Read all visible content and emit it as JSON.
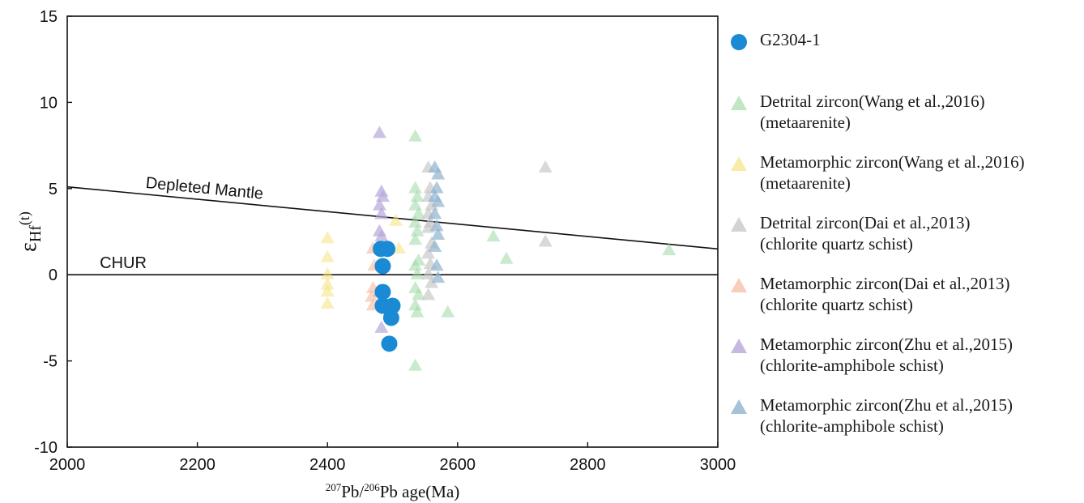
{
  "chart_data": {
    "type": "scatter",
    "title": "",
    "xlabel": "207Pb/206Pb age(Ma)",
    "xlabel_parts": {
      "sup1": "207",
      "base1": "Pb/",
      "sup2": "206",
      "base2": "Pb age(Ma)"
    },
    "ylabel": "εHf(t)",
    "ylabel_parts": {
      "main": "ε",
      "sub": "Hf",
      "tail": "(t)"
    },
    "xlim": [
      2000,
      3000
    ],
    "ylim": [
      -10,
      15
    ],
    "x_ticks": [
      "2000",
      "2200",
      "2400",
      "2600",
      "2800",
      "3000"
    ],
    "y_ticks": [
      "15",
      "10",
      "5",
      "0",
      "-5",
      "-10"
    ],
    "x_tick_values": [
      2000,
      2200,
      2400,
      2600,
      2800,
      3000
    ],
    "y_tick_values": [
      15,
      10,
      5,
      0,
      -5,
      -10
    ],
    "grid": false,
    "legend_position": "right",
    "reference_lines": [
      {
        "name": "Depleted Mantle",
        "label": "Depleted Mantle",
        "x": [
          2000,
          3000
        ],
        "y": [
          5.1,
          1.5
        ]
      },
      {
        "name": "CHUR",
        "label": "CHUR",
        "x": [
          2000,
          3000
        ],
        "y": [
          0,
          0
        ]
      }
    ],
    "series": [
      {
        "name": "G2304-1",
        "sub": "",
        "marker": "circle",
        "color": "#1a8ad4",
        "opacity": 1.0,
        "points": [
          [
            2482,
            1.5
          ],
          [
            2492,
            1.5
          ],
          [
            2485,
            0.5
          ],
          [
            2485,
            -1.0
          ],
          [
            2485,
            -1.8
          ],
          [
            2500,
            -1.8
          ],
          [
            2498,
            -2.5
          ],
          [
            2495,
            -4.0
          ]
        ]
      },
      {
        "name": "Detrital zircon(Wang et al.,2016)",
        "sub": "(metaarenite)",
        "marker": "triangle",
        "color": "#9ed9a5",
        "opacity": 0.55,
        "points": [
          [
            2535,
            8.0
          ],
          [
            2535,
            5.0
          ],
          [
            2538,
            4.5
          ],
          [
            2535,
            4.0
          ],
          [
            2540,
            3.5
          ],
          [
            2535,
            3.0
          ],
          [
            2538,
            2.5
          ],
          [
            2535,
            2.0
          ],
          [
            2540,
            0.8
          ],
          [
            2535,
            0.5
          ],
          [
            2538,
            0.0
          ],
          [
            2535,
            -0.8
          ],
          [
            2540,
            -1.2
          ],
          [
            2535,
            -1.8
          ],
          [
            2538,
            -2.2
          ],
          [
            2585,
            -2.2
          ],
          [
            2535,
            -5.3
          ],
          [
            2655,
            2.2
          ],
          [
            2675,
            0.9
          ],
          [
            2925,
            1.4
          ]
        ]
      },
      {
        "name": "Metamorphic zircon(Wang et al.,2016)",
        "sub": "(metaarenite)",
        "marker": "triangle",
        "color": "#f6e27a",
        "opacity": 0.55,
        "points": [
          [
            2400,
            2.1
          ],
          [
            2400,
            1.0
          ],
          [
            2400,
            0.0
          ],
          [
            2400,
            -0.6
          ],
          [
            2400,
            -1.0
          ],
          [
            2400,
            -1.7
          ],
          [
            2505,
            3.1
          ],
          [
            2510,
            1.5
          ]
        ]
      },
      {
        "name": "Detrital zircon(Dai et al.,2013)",
        "sub": "(chlorite quartz schist)",
        "marker": "triangle",
        "color": "#c4c4c4",
        "opacity": 0.65,
        "points": [
          [
            2555,
            6.2
          ],
          [
            2558,
            5.0
          ],
          [
            2555,
            4.5
          ],
          [
            2560,
            4.0
          ],
          [
            2555,
            3.5
          ],
          [
            2558,
            3.0
          ],
          [
            2555,
            2.7
          ],
          [
            2560,
            1.8
          ],
          [
            2555,
            1.2
          ],
          [
            2558,
            0.6
          ],
          [
            2555,
            0.0
          ],
          [
            2560,
            -0.5
          ],
          [
            2555,
            -1.2
          ],
          [
            2735,
            6.2
          ],
          [
            2735,
            1.9
          ]
        ]
      },
      {
        "name": "Metamorphic zircon(Dai et al.,2013)",
        "sub": "(chlorite quartz schist)",
        "marker": "triangle",
        "color": "#f5b297",
        "opacity": 0.55,
        "points": [
          [
            2470,
            1.5
          ],
          [
            2472,
            0.5
          ],
          [
            2470,
            -0.8
          ],
          [
            2468,
            -1.3
          ],
          [
            2470,
            -1.8
          ]
        ]
      },
      {
        "name": "Metamorphic zircon(Zhu et al.,2015)",
        "sub": "(chlorite-amphibole schist)",
        "marker": "triangle",
        "color": "#b7a8d9",
        "opacity": 0.7,
        "points": [
          [
            2480,
            8.2
          ],
          [
            2483,
            4.8
          ],
          [
            2485,
            4.5
          ],
          [
            2480,
            4.0
          ],
          [
            2483,
            3.5
          ],
          [
            2480,
            2.5
          ],
          [
            2483,
            2.2
          ],
          [
            2480,
            -1.0
          ],
          [
            2483,
            -3.1
          ]
        ]
      },
      {
        "name": "Metamorphic zircon(Zhu et al.,2015)",
        "sub": "(chlorite-amphibole schist)",
        "marker": "triangle",
        "color": "#8eb3cf",
        "opacity": 0.7,
        "points": [
          [
            2565,
            6.2
          ],
          [
            2570,
            5.8
          ],
          [
            2568,
            5.0
          ],
          [
            2565,
            4.5
          ],
          [
            2570,
            4.2
          ],
          [
            2565,
            3.5
          ],
          [
            2568,
            2.8
          ],
          [
            2570,
            2.3
          ],
          [
            2565,
            1.6
          ],
          [
            2568,
            0.5
          ],
          [
            2570,
            -0.2
          ]
        ]
      }
    ]
  }
}
